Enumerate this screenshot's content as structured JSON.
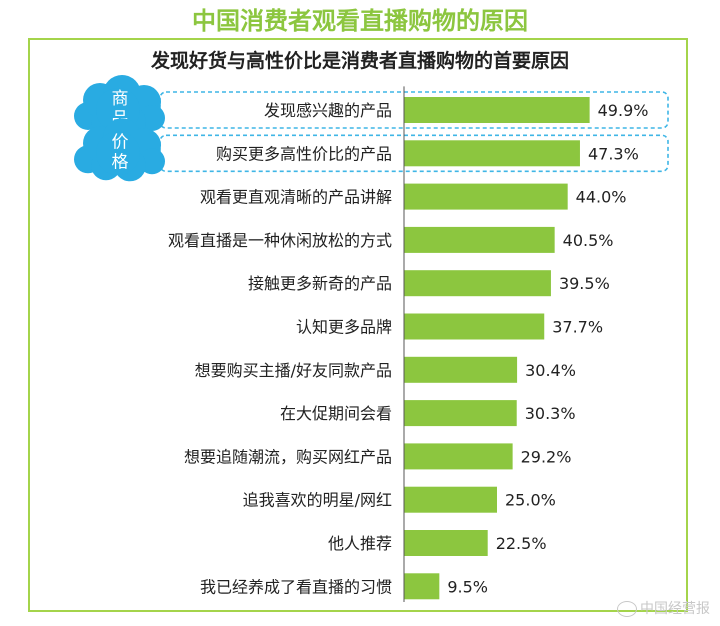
{
  "chart_data": {
    "type": "bar",
    "orientation": "horizontal",
    "title": "中国消费者观看直播购物的原因",
    "subtitle": "发现好货与高性价比是消费者直播购物的首要原因",
    "categories": [
      "发现感兴趣的产品",
      "购买更多高性价比的产品",
      "观看更直观清晰的产品讲解",
      "观看直播是一种休闲放松的方式",
      "接触更多新奇的产品",
      "认知更多品牌",
      "想要购买主播/好友同款产品",
      "在大促期间会看",
      "想要追随潮流，购买网红产品",
      "追我喜欢的明星/网红",
      "他人推荐",
      "我已经养成了看直播的习惯"
    ],
    "values": [
      49.9,
      47.3,
      44.0,
      40.5,
      39.5,
      37.7,
      30.4,
      30.3,
      29.2,
      25.0,
      22.5,
      9.5
    ],
    "value_labels": [
      "49.9%",
      "47.3%",
      "44.0%",
      "40.5%",
      "39.5%",
      "37.7%",
      "30.4%",
      "30.3%",
      "29.2%",
      "25.0%",
      "22.5%",
      "9.5%"
    ],
    "bar_color": "#8cc63f",
    "highlights": [
      {
        "label": "商品",
        "category_index": 0
      },
      {
        "label": "价格",
        "category_index": 1
      }
    ],
    "grid": false
  },
  "colors": {
    "accent": "#8cc63f",
    "frame": "#a4d44b",
    "cloud": "#29abe2",
    "highlight_border": "#3fb6e6"
  },
  "watermark": "中国经营报"
}
